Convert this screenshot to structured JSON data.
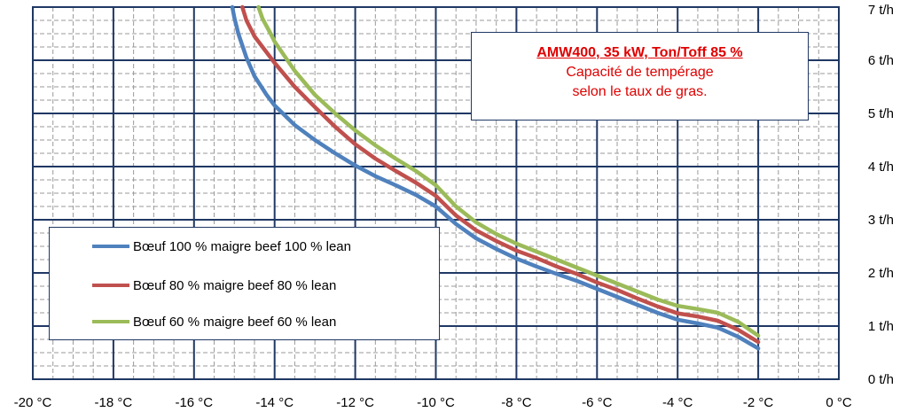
{
  "chart_data": {
    "type": "line",
    "title": "AMW400,  35 kW,  Ton/Toff 85 %",
    "subtitle_lines": [
      "Capacité de tempérage",
      "selon le taux de gras."
    ],
    "xlabel": "",
    "ylabel": "",
    "xlim": [
      -20,
      0
    ],
    "ylim": [
      0,
      7
    ],
    "x_ticks": [
      -20,
      -18,
      -16,
      -14,
      -12,
      -10,
      -8,
      -6,
      -4,
      -2,
      0
    ],
    "x_tick_labels": [
      "-20 °C",
      "-18 °C",
      "-16 °C",
      "-14 °C",
      "-12 °C",
      "-10 °C",
      "-8 °C",
      "-6 °C",
      "-4 °C",
      "-2 °C",
      "0 °C"
    ],
    "y_ticks": [
      0,
      1,
      2,
      3,
      4,
      5,
      6,
      7
    ],
    "y_tick_labels": [
      "0 t/h",
      "1 t/h",
      "2 t/h",
      "3 t/h",
      "4 t/h",
      "5 t/h",
      "6 t/h",
      "7 t/h"
    ],
    "grid": true,
    "x_minor_step": 0.5,
    "y_minor_step": 0.25,
    "legend_position": "left",
    "series": [
      {
        "name": "Bœuf 100 % maigre  beef 100 % lean",
        "color": "#4f81bd",
        "points": [
          [
            -15.05,
            7.0
          ],
          [
            -15.0,
            6.8
          ],
          [
            -14.9,
            6.5
          ],
          [
            -14.7,
            6.05
          ],
          [
            -14.5,
            5.7
          ],
          [
            -14.2,
            5.35
          ],
          [
            -14.0,
            5.15
          ],
          [
            -13.5,
            4.78
          ],
          [
            -13.0,
            4.5
          ],
          [
            -12.5,
            4.25
          ],
          [
            -12.0,
            4.02
          ],
          [
            -11.5,
            3.82
          ],
          [
            -11.0,
            3.65
          ],
          [
            -10.5,
            3.47
          ],
          [
            -10.0,
            3.25
          ],
          [
            -9.5,
            2.92
          ],
          [
            -9.0,
            2.65
          ],
          [
            -8.5,
            2.45
          ],
          [
            -8.0,
            2.27
          ],
          [
            -7.5,
            2.12
          ],
          [
            -7.0,
            1.98
          ],
          [
            -6.5,
            1.85
          ],
          [
            -6.0,
            1.7
          ],
          [
            -5.5,
            1.55
          ],
          [
            -5.0,
            1.4
          ],
          [
            -4.5,
            1.25
          ],
          [
            -4.0,
            1.12
          ],
          [
            -3.5,
            1.05
          ],
          [
            -3.0,
            0.97
          ],
          [
            -2.5,
            0.8
          ],
          [
            -2.0,
            0.58
          ]
        ]
      },
      {
        "name": "Bœuf 80 % maigre  beef 80 % lean",
        "color": "#c0504d",
        "points": [
          [
            -14.8,
            7.0
          ],
          [
            -14.7,
            6.75
          ],
          [
            -14.5,
            6.45
          ],
          [
            -14.2,
            6.15
          ],
          [
            -14.0,
            5.95
          ],
          [
            -13.5,
            5.5
          ],
          [
            -13.0,
            5.12
          ],
          [
            -12.5,
            4.75
          ],
          [
            -12.0,
            4.42
          ],
          [
            -11.5,
            4.15
          ],
          [
            -11.0,
            3.92
          ],
          [
            -10.5,
            3.7
          ],
          [
            -10.0,
            3.45
          ],
          [
            -9.5,
            3.08
          ],
          [
            -9.0,
            2.8
          ],
          [
            -8.5,
            2.6
          ],
          [
            -8.0,
            2.42
          ],
          [
            -7.5,
            2.28
          ],
          [
            -7.0,
            2.12
          ],
          [
            -6.5,
            1.98
          ],
          [
            -6.0,
            1.82
          ],
          [
            -5.5,
            1.68
          ],
          [
            -5.0,
            1.52
          ],
          [
            -4.5,
            1.37
          ],
          [
            -4.0,
            1.24
          ],
          [
            -3.5,
            1.18
          ],
          [
            -3.0,
            1.1
          ],
          [
            -2.5,
            0.93
          ],
          [
            -2.0,
            0.7
          ]
        ]
      },
      {
        "name": "Bœuf 60 % maigre  beef 60 % lean",
        "color": "#9bbb59",
        "points": [
          [
            -14.4,
            7.0
          ],
          [
            -14.3,
            6.78
          ],
          [
            -14.1,
            6.5
          ],
          [
            -14.0,
            6.35
          ],
          [
            -13.5,
            5.8
          ],
          [
            -13.0,
            5.35
          ],
          [
            -12.5,
            5.0
          ],
          [
            -12.0,
            4.68
          ],
          [
            -11.5,
            4.4
          ],
          [
            -11.0,
            4.15
          ],
          [
            -10.5,
            3.92
          ],
          [
            -10.0,
            3.65
          ],
          [
            -9.5,
            3.25
          ],
          [
            -9.0,
            2.95
          ],
          [
            -8.5,
            2.73
          ],
          [
            -8.0,
            2.55
          ],
          [
            -7.5,
            2.4
          ],
          [
            -7.0,
            2.25
          ],
          [
            -6.5,
            2.1
          ],
          [
            -6.0,
            1.95
          ],
          [
            -5.5,
            1.8
          ],
          [
            -5.0,
            1.65
          ],
          [
            -4.5,
            1.5
          ],
          [
            -4.0,
            1.38
          ],
          [
            -3.5,
            1.32
          ],
          [
            -3.0,
            1.25
          ],
          [
            -2.5,
            1.08
          ],
          [
            -2.0,
            0.82
          ]
        ]
      }
    ]
  }
}
